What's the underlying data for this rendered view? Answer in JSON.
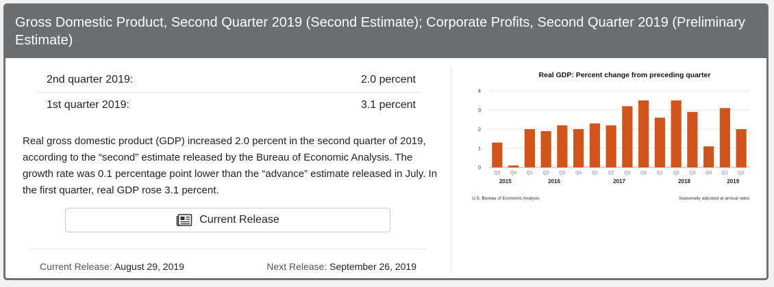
{
  "header": {
    "title": "Gross Domestic Product, Second Quarter 2019 (Second Estimate); Corporate Profits, Second Quarter 2019 (Preliminary Estimate)"
  },
  "gdp_rates": [
    {
      "label": "2nd quarter 2019:",
      "value": "2.0 percent"
    },
    {
      "label": "1st quarter 2019:",
      "value": "3.1 percent"
    }
  ],
  "summary": "Real gross domestic product (GDP) increased 2.0 percent in the second quarter of 2019, according to the “second” estimate released by the Bureau of Economic Analysis. The growth rate was 0.1 percentage point lower than the “advance” estimate released in July. In the first quarter, real GDP rose 3.1 percent.",
  "release_button": {
    "label": "Current Release",
    "icon": "newspaper-icon"
  },
  "footer": {
    "current_label": "Current Release:",
    "current_date": "August 29, 2019",
    "next_label": "Next Release:",
    "next_date": "September 26, 2019"
  },
  "colors": {
    "bar": "#d0541c",
    "header": "#6b6d6f"
  },
  "chart_data": {
    "type": "bar",
    "title": "Real GDP:  Percent change from preceding quarter",
    "categories": [
      "Q3",
      "Q4",
      "Q1",
      "Q2",
      "Q3",
      "Q4",
      "Q1",
      "Q2",
      "Q3",
      "Q4",
      "Q1",
      "Q2",
      "Q3",
      "Q4",
      "Q1",
      "Q2"
    ],
    "years": [
      "2015",
      "2016",
      "2017",
      "2018",
      "2019"
    ],
    "values": [
      1.3,
      0.1,
      2.0,
      1.9,
      2.2,
      2.0,
      2.3,
      2.2,
      3.2,
      3.5,
      2.6,
      3.5,
      2.9,
      1.1,
      3.1,
      2.0
    ],
    "ylim": [
      0,
      4
    ],
    "yticks": [
      "0",
      "1",
      "2",
      "3",
      "4"
    ],
    "source": "U.S. Bureau of Economic Analysis",
    "note": "Seasonally adjusted at annual rates",
    "grid": true
  }
}
